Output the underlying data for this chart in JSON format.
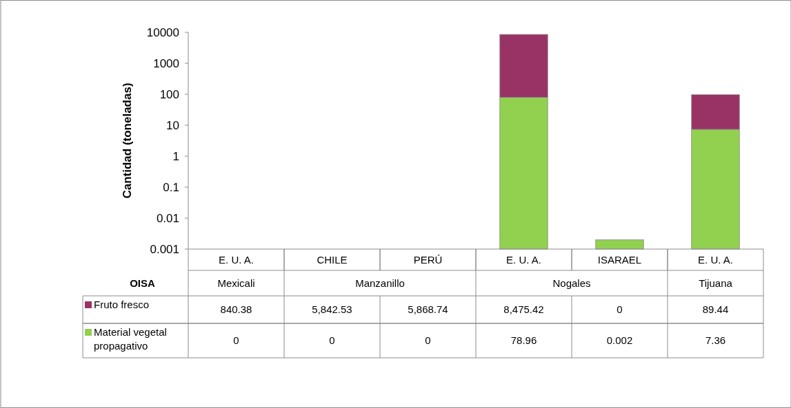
{
  "chart_data": {
    "type": "bar",
    "stacked": true,
    "log": true,
    "ylabel": "Cantidad (toneladas)",
    "categories": [
      "E. U. A.",
      "CHILE",
      "PERÚ",
      "E. U. A.",
      "ISARAEL",
      "E. U. A."
    ],
    "annotations": [
      "OISA",
      "Mexicali",
      "Manzanillo",
      "Nogales",
      "Tijuana"
    ],
    "ylim": [
      0.001,
      10000
    ],
    "yticks": [
      0.001,
      0.01,
      0.1,
      1,
      10,
      100,
      1000,
      10000
    ],
    "legend": "bottom",
    "series": [
      {
        "name": "Material vegetal propagativo",
        "color": "#92d050",
        "values": [
          null,
          null,
          null,
          78.96,
          0.002,
          7.36
        ],
        "value_labels": [
          "0",
          "0",
          "0",
          "78.96",
          "0.002",
          "7.36"
        ]
      },
      {
        "name": "Fruto fresco",
        "color": "#993366",
        "values": [
          null,
          null,
          null,
          8475.42,
          null,
          89.44
        ],
        "value_labels": [
          "840.38",
          "5,842.53",
          "5,868.74",
          "8,475.42",
          "0",
          "89.44"
        ]
      }
    ]
  }
}
